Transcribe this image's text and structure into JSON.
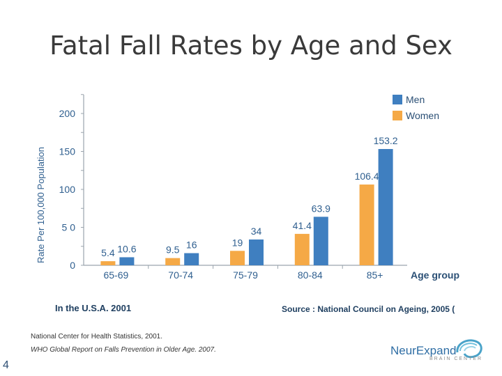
{
  "chart_data": {
    "type": "bar",
    "title": "Fatal Fall Rates by Age and Sex",
    "ylabel": "Rate Per 100,000 Population",
    "xlabel": "Age group",
    "categories": [
      "65-69",
      "70-74",
      "75-79",
      "80-84",
      "85+"
    ],
    "series": [
      {
        "name": "Women",
        "color": "#f5a946",
        "values": [
          5.4,
          9.5,
          19,
          41.4,
          106.4
        ]
      },
      {
        "name": "Men",
        "color": "#3f7fc0",
        "values": [
          10.6,
          16,
          34,
          63.9,
          153.2
        ]
      }
    ],
    "value_labels": {
      "Women": [
        "5.4",
        "9.5",
        "19",
        "41.4",
        "106.4"
      ],
      "Men": [
        "10.6",
        "16",
        "34",
        "63.9",
        "153.2"
      ]
    },
    "legend_order": [
      "Men",
      "Women"
    ],
    "ylim": [
      0,
      200
    ],
    "yticks": [
      0,
      50,
      100,
      150,
      200
    ],
    "ytick_labels": [
      "0",
      "5 0",
      "100",
      "150",
      "200"
    ],
    "legend": "top-right",
    "grid": false
  },
  "footer": {
    "left": "In the U.S.A. 2001",
    "right": "Source : National Council on Ageing, 2005 (",
    "reference_1": "National Center for Health Statistics, 2001.",
    "reference_2": "WHO Global Report on Falls Prevention in Older Age. 2007."
  },
  "page_number": "4",
  "logo": {
    "name": "NeurExpand",
    "tagline": "BRAIN CENTER"
  }
}
